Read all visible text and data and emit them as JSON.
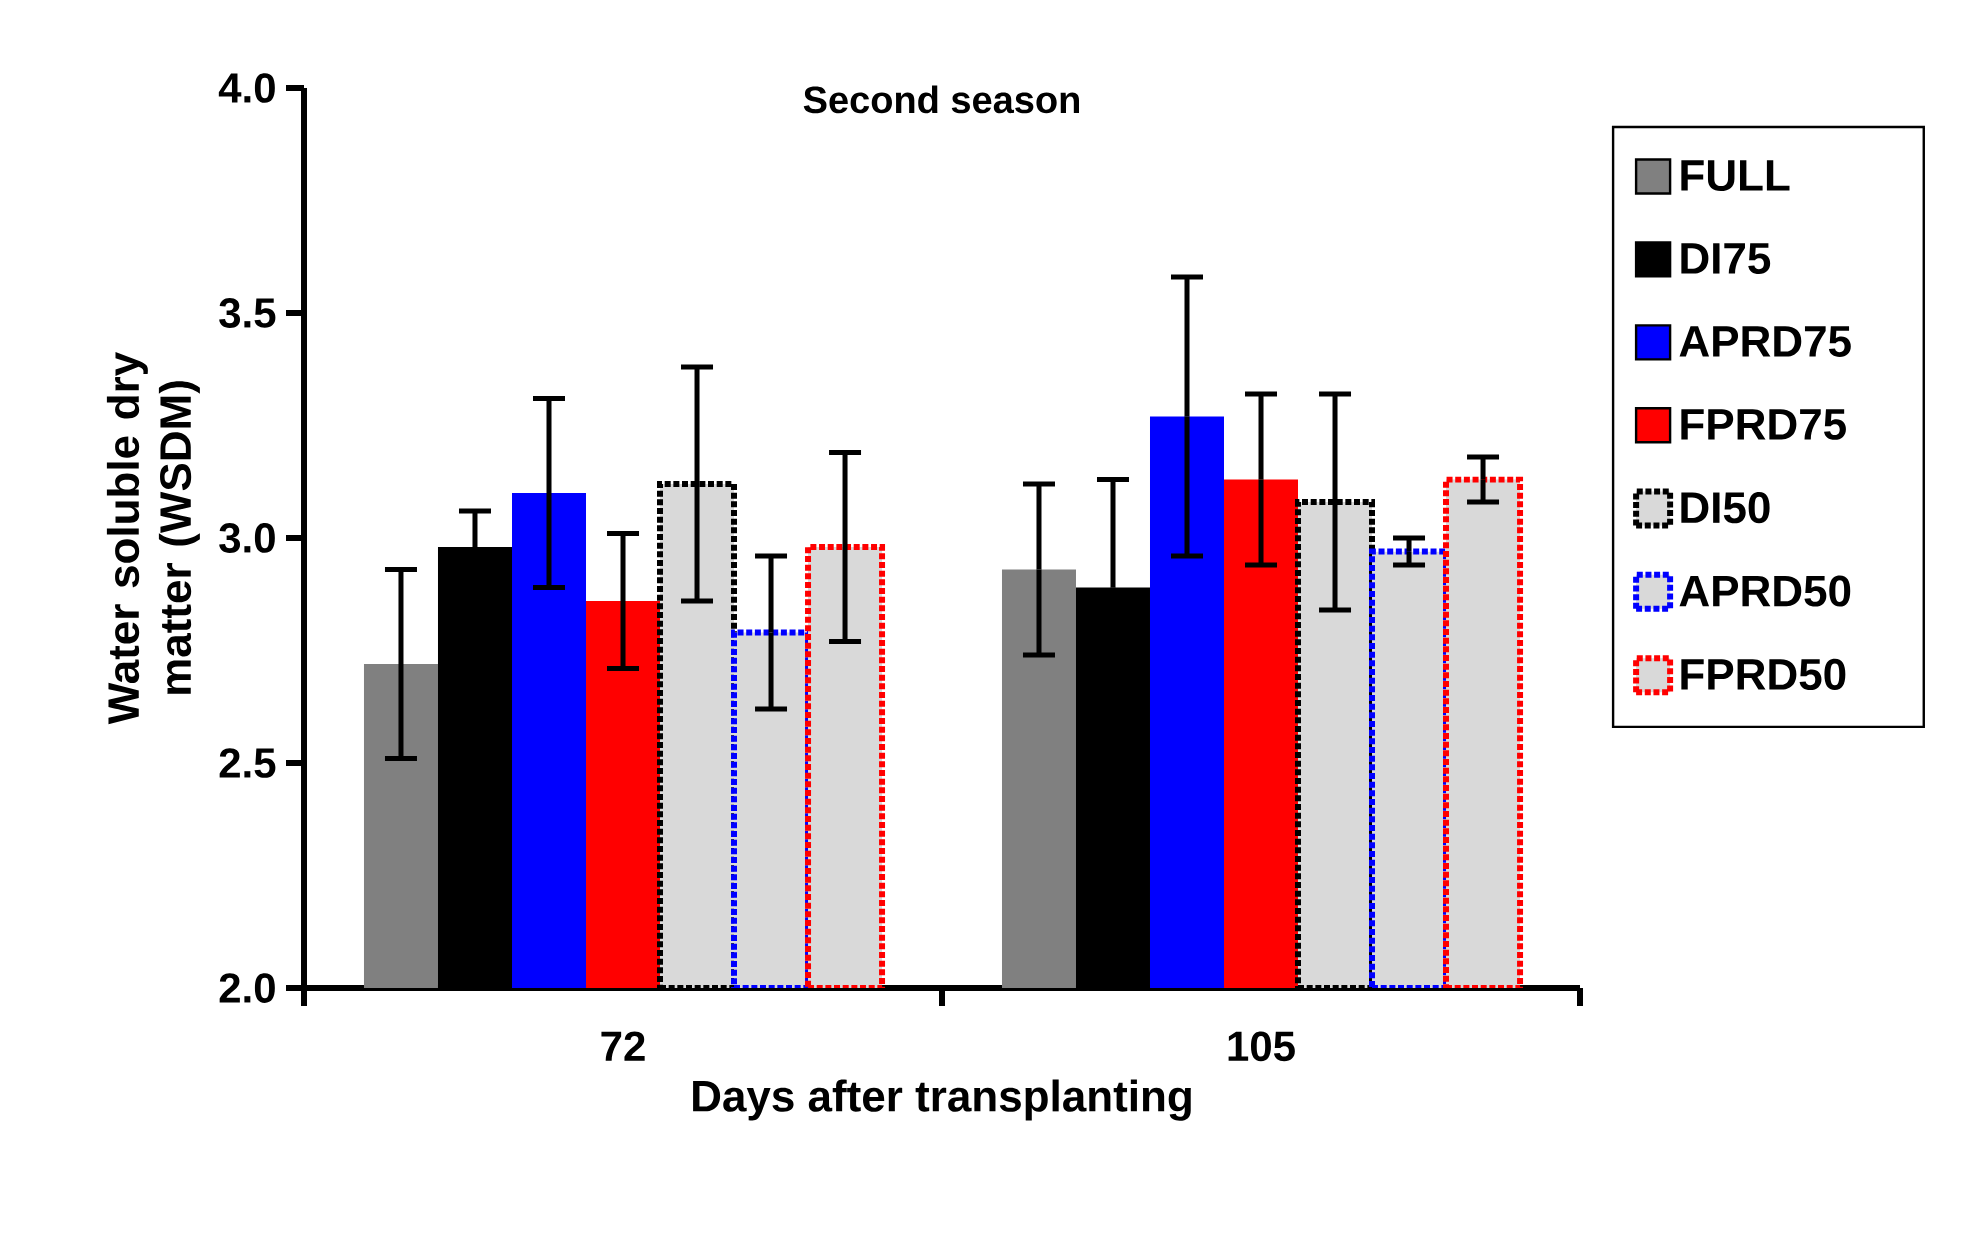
{
  "chart_data": {
    "type": "bar",
    "title": "Second season",
    "xlabel": "Days after transplanting",
    "ylabel": "Water soluble dry matter (WSDM)",
    "categories": [
      "72",
      "105"
    ],
    "series": [
      {
        "name": "FULL",
        "color": "#808080",
        "line_style": "solid",
        "values": [
          2.72,
          2.93
        ],
        "errors": [
          0.21,
          0.19
        ]
      },
      {
        "name": "DI75",
        "color": "#000000",
        "line_style": "solid",
        "values": [
          2.98,
          2.89
        ],
        "errors": [
          0.08,
          0.24
        ]
      },
      {
        "name": "APRD75",
        "color": "#0000ff",
        "line_style": "solid",
        "values": [
          3.1,
          3.27
        ],
        "errors": [
          0.21,
          0.31
        ]
      },
      {
        "name": "FPRD75",
        "color": "#ff0000",
        "line_style": "solid",
        "values": [
          2.86,
          3.13
        ],
        "errors": [
          0.15,
          0.19
        ]
      },
      {
        "name": "DI50",
        "color": "#d9d9d9",
        "line_style": "dotted",
        "values": [
          3.12,
          3.08
        ],
        "errors": [
          0.26,
          0.24
        ]
      },
      {
        "name": "APRD50",
        "color": "#d9d9d9",
        "line_style": "dotted",
        "values": [
          2.79,
          2.97
        ],
        "errors": [
          0.17,
          0.03
        ]
      },
      {
        "name": "FPRD50",
        "color": "#d9d9d9",
        "line_style": "dotted",
        "values": [
          2.98,
          3.13
        ],
        "errors": [
          0.21,
          0.05
        ]
      }
    ],
    "ylim": [
      2,
      4
    ],
    "yticks": [
      {
        "value": 2,
        "label": "2.0"
      },
      {
        "value": 2.5,
        "label": "2.5"
      },
      {
        "value": 3,
        "label": "3.0"
      },
      {
        "value": 3.5,
        "label": "3.5"
      },
      {
        "value": 4,
        "label": "4.0"
      }
    ],
    "legend": "right"
  }
}
